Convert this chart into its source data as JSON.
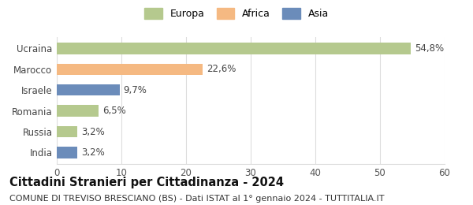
{
  "categories": [
    "Ucraina",
    "Marocco",
    "Israele",
    "Romania",
    "Russia",
    "India"
  ],
  "values": [
    54.8,
    22.6,
    9.7,
    6.5,
    3.2,
    3.2
  ],
  "labels": [
    "54,8%",
    "22,6%",
    "9,7%",
    "6,5%",
    "3,2%",
    "3,2%"
  ],
  "colors": [
    "#b5c98e",
    "#f5b982",
    "#6b8cba",
    "#b5c98e",
    "#b5c98e",
    "#6b8cba"
  ],
  "legend_items": [
    {
      "label": "Europa",
      "color": "#b5c98e"
    },
    {
      "label": "Africa",
      "color": "#f5b982"
    },
    {
      "label": "Asia",
      "color": "#6b8cba"
    }
  ],
  "xlim": [
    0,
    60
  ],
  "xticks": [
    0,
    10,
    20,
    30,
    40,
    50,
    60
  ],
  "title": "Cittadini Stranieri per Cittadinanza - 2024",
  "subtitle": "COMUNE DI TREVISO BRESCIANO (BS) - Dati ISTAT al 1° gennaio 2024 - TUTTITALIA.IT",
  "title_fontsize": 10.5,
  "subtitle_fontsize": 8,
  "bar_height": 0.55,
  "background_color": "#ffffff",
  "grid_color": "#dddddd",
  "label_fontsize": 8.5,
  "ytick_fontsize": 8.5,
  "xtick_fontsize": 8.5
}
